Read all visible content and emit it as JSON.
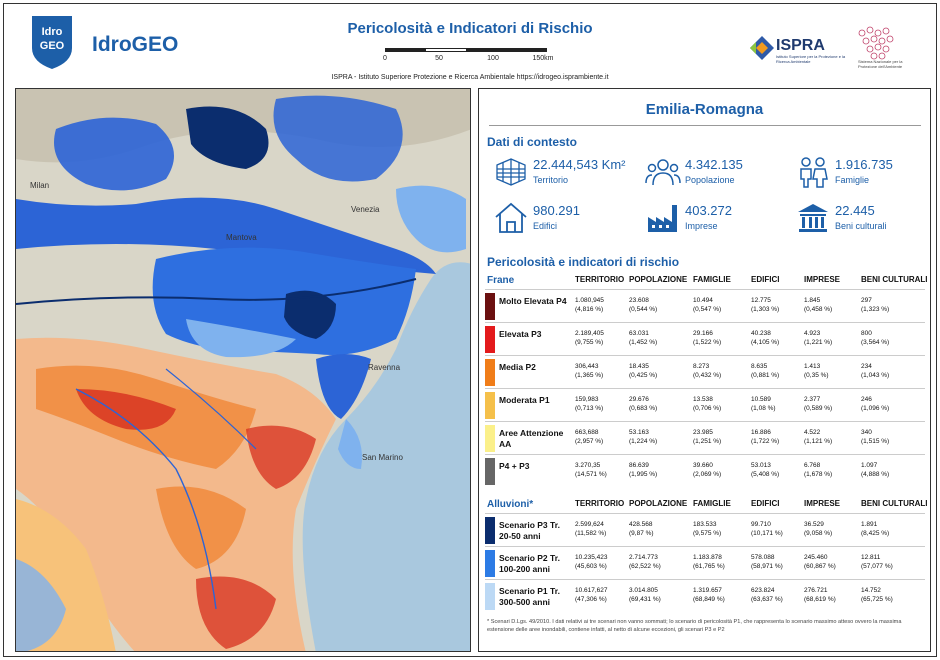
{
  "header": {
    "logo_text_top": "Idro",
    "logo_text_bottom": "GEO",
    "brand": "IdroGEO",
    "title": "Pericolosità e Indicatori di Rischio",
    "scale_ticks": [
      "0",
      "50",
      "100",
      "150km"
    ],
    "subtitle": "ISPRA - Istituto Superiore Protezione e Ricerca Ambientale  https://idrogeo.isprambiente.it",
    "partner1": "ISPRA",
    "partner1_sub": "Istituto Superiore per la Protezione e la Ricerca Ambientale",
    "partner2_sub": "Sistema Nazionale per la Protezione dell'Ambiente"
  },
  "map": {
    "labels": [
      "Milan",
      "Mantova",
      "Venezia",
      "Ravenna",
      "San Marino"
    ],
    "colors": {
      "sea": "#a9c8de",
      "land": "#d9d6c8",
      "flood_high": "#0b2d6e",
      "flood_med": "#2c64d6",
      "flood_low": "#7fb2ee",
      "landslide_high": "#d7301f",
      "landslide_med": "#f08a3c",
      "landslide_low": "#f7c27a"
    }
  },
  "panel": {
    "region": "Emilia-Romagna",
    "context_title": "Dati di contesto",
    "context": [
      {
        "icon": "territory-icon",
        "value": "22.444,543 Km²",
        "label": "Territorio"
      },
      {
        "icon": "population-icon",
        "value": "4.342.135",
        "label": "Popolazione"
      },
      {
        "icon": "families-icon",
        "value": "1.916.735",
        "label": "Famiglie"
      },
      {
        "icon": "buildings-icon",
        "value": "980.291",
        "label": "Edifici"
      },
      {
        "icon": "businesses-icon",
        "value": "403.272",
        "label": "Imprese"
      },
      {
        "icon": "cultural-heritage-icon",
        "value": "22.445",
        "label": "Beni culturali"
      }
    ],
    "risk_title": "Pericolosità e indicatori di rischio",
    "columns": [
      "TERRITORIO",
      "POPOLAZIONE",
      "FAMIGLIE",
      "EDIFICI",
      "IMPRESE",
      "BENI CULTURALI"
    ],
    "frane": {
      "title": "Frane",
      "rows": [
        {
          "label": "Molto Elevata P4",
          "color": "#6b1010",
          "cells": [
            [
              "1.080,945",
              "(4,816 %)"
            ],
            [
              "23.608",
              "(0,544 %)"
            ],
            [
              "10.494",
              "(0,547 %)"
            ],
            [
              "12.775",
              "(1,303 %)"
            ],
            [
              "1.845",
              "(0,458 %)"
            ],
            [
              "297",
              "(1,323 %)"
            ]
          ]
        },
        {
          "label": "Elevata P3",
          "color": "#e31a1c",
          "cells": [
            [
              "2.189,405",
              "(9,755 %)"
            ],
            [
              "63.031",
              "(1,452 %)"
            ],
            [
              "29.166",
              "(1,522 %)"
            ],
            [
              "40.238",
              "(4,105 %)"
            ],
            [
              "4.923",
              "(1,221 %)"
            ],
            [
              "800",
              "(3,564 %)"
            ]
          ]
        },
        {
          "label": "Media P2",
          "color": "#f07d19",
          "cells": [
            [
              "306,443",
              "(1,365 %)"
            ],
            [
              "18.435",
              "(0,425 %)"
            ],
            [
              "8.273",
              "(0,432 %)"
            ],
            [
              "8.635",
              "(0,881 %)"
            ],
            [
              "1.413",
              "(0,35 %)"
            ],
            [
              "234",
              "(1,043 %)"
            ]
          ]
        },
        {
          "label": "Moderata P1",
          "color": "#f5c04a",
          "cells": [
            [
              "159,983",
              "(0,713 %)"
            ],
            [
              "29.676",
              "(0,683 %)"
            ],
            [
              "13.538",
              "(0,706 %)"
            ],
            [
              "10.589",
              "(1,08 %)"
            ],
            [
              "2.377",
              "(0,589 %)"
            ],
            [
              "246",
              "(1,096 %)"
            ]
          ]
        },
        {
          "label": "Aree Attenzione AA",
          "color": "#fbf08a",
          "cells": [
            [
              "663,688",
              "(2,957 %)"
            ],
            [
              "53.163",
              "(1,224 %)"
            ],
            [
              "23.985",
              "(1,251 %)"
            ],
            [
              "16.886",
              "(1,722 %)"
            ],
            [
              "4.522",
              "(1,121 %)"
            ],
            [
              "340",
              "(1,515 %)"
            ]
          ]
        },
        {
          "label": "P4 + P3",
          "color": "#666666",
          "cells": [
            [
              "3.270,35",
              "(14,571 %)"
            ],
            [
              "86.639",
              "(1,995 %)"
            ],
            [
              "39.660",
              "(2,069 %)"
            ],
            [
              "53.013",
              "(5,408 %)"
            ],
            [
              "6.768",
              "(1,678 %)"
            ],
            [
              "1.097",
              "(4,888 %)"
            ]
          ]
        }
      ]
    },
    "alluvioni": {
      "title": "Alluvioni*",
      "rows": [
        {
          "label": "Scenario P3 Tr. 20-50 anni",
          "color": "#0b2d6e",
          "cells": [
            [
              "2.599,624",
              "(11,582 %)"
            ],
            [
              "428.568",
              "(9,87 %)"
            ],
            [
              "183.533",
              "(9,575 %)"
            ],
            [
              "99.710",
              "(10,171 %)"
            ],
            [
              "36.529",
              "(9,058 %)"
            ],
            [
              "1.891",
              "(8,425 %)"
            ]
          ]
        },
        {
          "label": "Scenario P2 Tr. 100-200 anni",
          "color": "#2c7be5",
          "cells": [
            [
              "10.235,423",
              "(45,603 %)"
            ],
            [
              "2.714.773",
              "(62,522 %)"
            ],
            [
              "1.183.878",
              "(61,765 %)"
            ],
            [
              "578.088",
              "(58,971 %)"
            ],
            [
              "245.460",
              "(60,867 %)"
            ],
            [
              "12.811",
              "(57,077 %)"
            ]
          ]
        },
        {
          "label": "Scenario P1 Tr. 300-500 anni",
          "color": "#bcd9f5",
          "cells": [
            [
              "10.617,627",
              "(47,306 %)"
            ],
            [
              "3.014.805",
              "(69,431 %)"
            ],
            [
              "1.319.657",
              "(68,849 %)"
            ],
            [
              "623.824",
              "(63,637 %)"
            ],
            [
              "276.721",
              "(68,619 %)"
            ],
            [
              "14.752",
              "(65,725 %)"
            ]
          ]
        }
      ]
    },
    "note": "* Scenari D.Lgs. 49/2010. I dati relativi ai tre scenari non vanno sommati; lo scenario di pericolosità P1, che rappresenta lo scenario massimo atteso ovvero la massima estensione delle aree inondabili, contiene infatti, al netto di alcune eccezioni, gli scenari P3 e P2"
  }
}
